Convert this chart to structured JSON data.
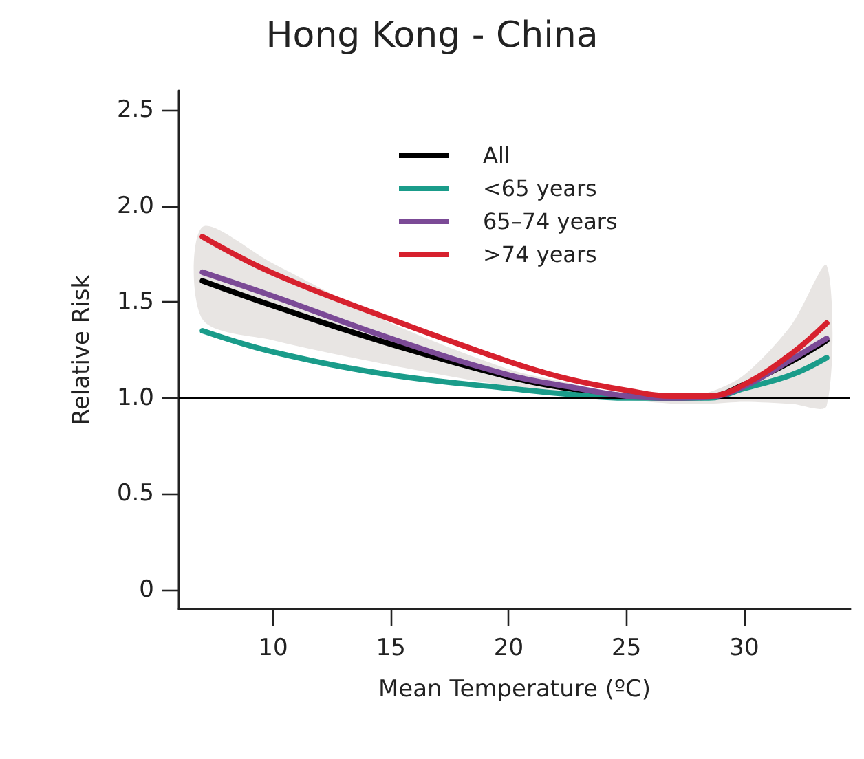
{
  "chart_data": {
    "type": "line",
    "title": "Hong Kong - China",
    "xlabel": "Mean Temperature (ºC)",
    "ylabel": "Relative Risk",
    "x": [
      7,
      10,
      15,
      20,
      22.5,
      25,
      27,
      28.5,
      30,
      32,
      33.5
    ],
    "series": [
      {
        "name": "All",
        "color": "#000000",
        "values": [
          1.61,
          1.48,
          1.28,
          1.11,
          1.05,
          1.01,
          1.0,
          1.005,
          1.07,
          1.19,
          1.3
        ],
        "lower": [
          1.41,
          1.3,
          1.17,
          1.06,
          1.02,
          0.99,
          0.97,
          0.97,
          0.98,
          0.97,
          0.96
        ],
        "upper": [
          1.89,
          1.7,
          1.39,
          1.15,
          1.08,
          1.02,
          1.01,
          1.03,
          1.12,
          1.38,
          1.69
        ]
      },
      {
        "name": "<65 years",
        "color": "#1a9c8a",
        "values": [
          1.35,
          1.24,
          1.12,
          1.05,
          1.02,
          1.0,
          1.0,
          1.0,
          1.05,
          1.12,
          1.21
        ]
      },
      {
        "name": "65–74 years",
        "color": "#7b4a96",
        "values": [
          1.655,
          1.53,
          1.31,
          1.12,
          1.06,
          1.01,
          1.0,
          1.005,
          1.06,
          1.2,
          1.31
        ]
      },
      {
        "name": ">74 years",
        "color": "#d7212e",
        "values": [
          1.84,
          1.65,
          1.41,
          1.19,
          1.1,
          1.04,
          1.01,
          1.01,
          1.07,
          1.23,
          1.39
        ]
      }
    ],
    "xlim": [
      6,
      34.5
    ],
    "xticks": [
      10,
      15,
      20,
      25,
      30
    ],
    "ylim": [
      -0.1,
      2.6
    ],
    "yticks": [
      {
        "value": 0,
        "label": "0"
      },
      {
        "value": 0.5,
        "label": "0.5"
      },
      {
        "value": 1,
        "label": "1.0"
      },
      {
        "value": 1.5,
        "label": "1.5"
      },
      {
        "value": 2,
        "label": "2.0"
      },
      {
        "value": 2.5,
        "label": "2.5"
      }
    ],
    "ref_lines": [
      {
        "axis": "y",
        "value": 1,
        "color": "#000000"
      }
    ],
    "legend": "top",
    "grid": false,
    "marker": "none",
    "line_style": "solid"
  }
}
